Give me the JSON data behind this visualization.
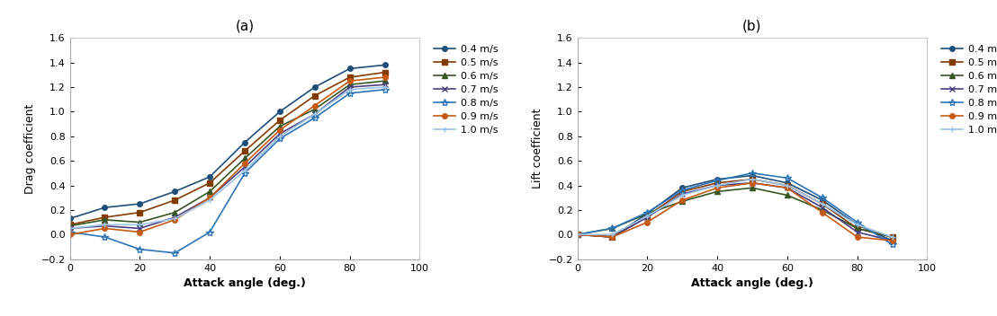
{
  "angles": [
    0,
    10,
    20,
    30,
    40,
    50,
    60,
    70,
    80,
    90
  ],
  "drag": {
    "0.4 m/s": [
      0.13,
      0.22,
      0.25,
      0.35,
      0.47,
      0.75,
      1.0,
      1.2,
      1.35,
      1.38
    ],
    "0.5 m/s": [
      0.08,
      0.14,
      0.18,
      0.28,
      0.42,
      0.68,
      0.93,
      1.13,
      1.28,
      1.32
    ],
    "0.6 m/s": [
      0.07,
      0.12,
      0.1,
      0.18,
      0.35,
      0.62,
      0.88,
      1.02,
      1.22,
      1.25
    ],
    "0.7 m/s": [
      0.05,
      0.07,
      0.05,
      0.14,
      0.3,
      0.55,
      0.82,
      0.98,
      1.2,
      1.22
    ],
    "0.8 m/s": [
      0.02,
      -0.02,
      -0.12,
      -0.15,
      0.02,
      0.5,
      0.78,
      0.95,
      1.15,
      1.18
    ],
    "0.9 m/s": [
      0.0,
      0.05,
      0.02,
      0.12,
      0.3,
      0.58,
      0.85,
      1.05,
      1.25,
      1.28
    ],
    "1.0 m/s": [
      0.05,
      0.08,
      0.08,
      0.13,
      0.28,
      0.52,
      0.8,
      0.98,
      1.18,
      1.2
    ]
  },
  "lift": {
    "0.4 m/s": [
      0.0,
      -0.02,
      0.17,
      0.38,
      0.45,
      0.48,
      0.42,
      0.28,
      0.08,
      -0.05
    ],
    "0.5 m/s": [
      0.0,
      -0.02,
      0.15,
      0.35,
      0.42,
      0.45,
      0.4,
      0.25,
      0.05,
      -0.02
    ],
    "0.6 m/s": [
      0.0,
      0.05,
      0.17,
      0.27,
      0.35,
      0.38,
      0.32,
      0.2,
      0.05,
      -0.02
    ],
    "0.7 m/s": [
      0.0,
      -0.02,
      0.14,
      0.33,
      0.4,
      0.42,
      0.38,
      0.22,
      0.02,
      -0.05
    ],
    "0.8 m/s": [
      0.0,
      0.05,
      0.18,
      0.36,
      0.44,
      0.5,
      0.46,
      0.3,
      0.1,
      -0.08
    ],
    "0.9 m/s": [
      0.0,
      -0.02,
      0.1,
      0.28,
      0.38,
      0.42,
      0.38,
      0.18,
      -0.02,
      -0.05
    ],
    "1.0 m/s": [
      0.0,
      0.0,
      0.15,
      0.32,
      0.4,
      0.45,
      0.4,
      0.25,
      0.08,
      -0.02
    ]
  },
  "colors": {
    "0.4 m/s": "#1f4e79",
    "0.5 m/s": "#833c00",
    "0.6 m/s": "#375623",
    "0.7 m/s": "#4a4080",
    "0.8 m/s": "#2e75b6",
    "0.9 m/s": "#c55a11",
    "1.0 m/s": "#9dc3e6"
  },
  "markers": {
    "0.4 m/s": "o",
    "0.5 m/s": "s",
    "0.6 m/s": "^",
    "0.7 m/s": "x",
    "0.8 m/s": "*",
    "0.9 m/s": "o",
    "1.0 m/s": "+"
  },
  "markersizes": {
    "0.4 m/s": 4,
    "0.5 m/s": 4,
    "0.6 m/s": 5,
    "0.7 m/s": 5,
    "0.8 m/s": 6,
    "0.9 m/s": 4,
    "1.0 m/s": 5
  },
  "speeds": [
    "0.4 m/s",
    "0.5 m/s",
    "0.6 m/s",
    "0.7 m/s",
    "0.8 m/s",
    "0.9 m/s",
    "1.0 m/s"
  ],
  "ylim": [
    -0.2,
    1.6
  ],
  "yticks": [
    -0.2,
    0.0,
    0.2,
    0.4,
    0.6,
    0.8,
    1.0,
    1.2,
    1.4,
    1.6
  ],
  "xlim": [
    0,
    100
  ],
  "xticks": [
    0,
    20,
    40,
    60,
    80,
    100
  ],
  "xlabel": "Attack angle (deg.)",
  "ylabel_drag": "Drag coefficient",
  "ylabel_lift": "Lift coefficient",
  "title_a": "(a)",
  "title_b": "(b)",
  "bg_color": "#ffffff",
  "linewidth": 1.2
}
